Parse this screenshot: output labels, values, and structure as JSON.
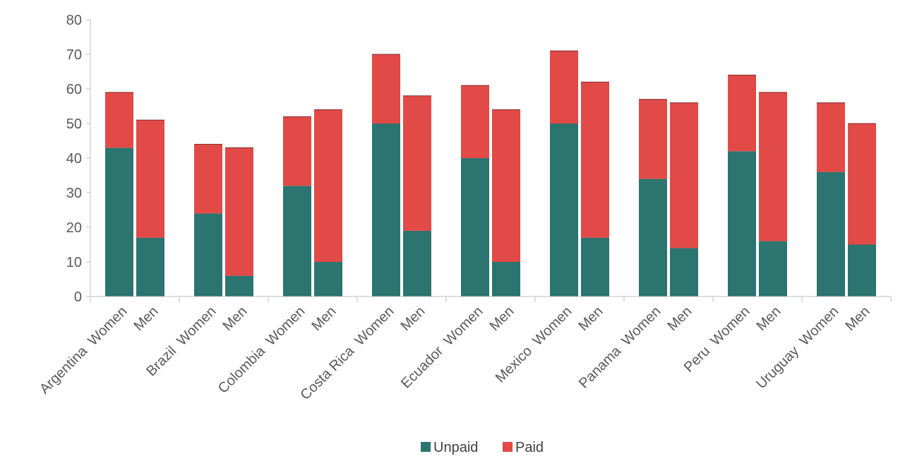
{
  "chart_data": {
    "type": "bar",
    "stacked": true,
    "categories": [
      "Argentina  Women",
      "Men",
      "Brazil  Women",
      "Men",
      "Colombia  Women",
      "Men",
      "Costa Rica  Women",
      "Men",
      "Ecuador  Women",
      "Men",
      "Mexico  Women",
      "Men",
      "Panama  Women",
      "Men",
      "Peru  Women",
      "Men",
      "Uruguay  Women",
      "Men"
    ],
    "series": [
      {
        "name": "Unpaid",
        "color": "#2b7470",
        "values": [
          43,
          17,
          24,
          6,
          32,
          10,
          50,
          19,
          40,
          10,
          50,
          17,
          34,
          14,
          42,
          16,
          36,
          15
        ]
      },
      {
        "name": "Paid",
        "color": "#e24a47",
        "values": [
          16,
          34,
          20,
          37,
          20,
          44,
          20,
          39,
          21,
          44,
          21,
          45,
          23,
          42,
          22,
          43,
          20,
          35
        ]
      }
    ],
    "ylim": [
      0,
      80
    ],
    "yticks": [
      "0",
      "10",
      "20",
      "30",
      "40",
      "50",
      "60",
      "70",
      "80"
    ],
    "grid": false,
    "legend_position": "bottom-center"
  }
}
